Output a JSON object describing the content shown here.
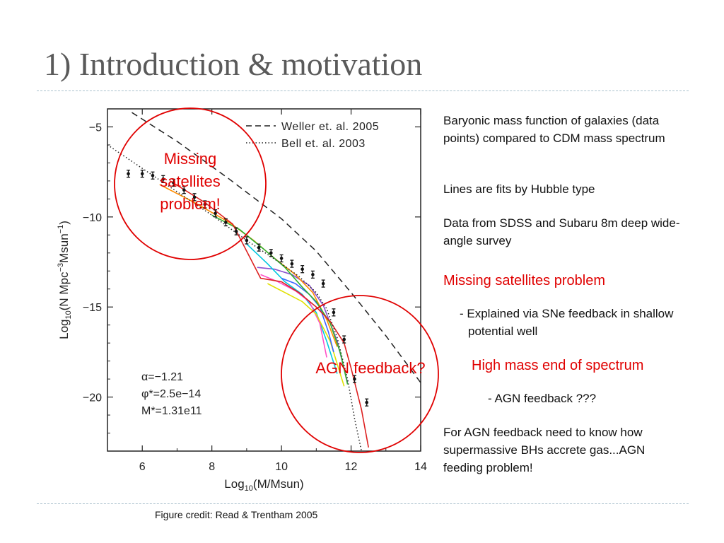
{
  "slide": {
    "title": "1) Introduction & motivation",
    "credit": "Figure credit:  Read & Trentham 2005"
  },
  "notes": {
    "p1": "Baryonic mass function of galaxies (data points) compared to CDM mass spectrum",
    "p2": "Lines are fits by Hubble type",
    "p3": "Data from SDSS and Subaru 8m deep wide-angle survey",
    "h1": "Missing satellites problem",
    "b1": "- Explained via SNe feedback in shallow potential well",
    "h2": "High mass end of spectrum",
    "b2": "- AGN feedback ???",
    "p4": "For AGN feedback need to know how supermassive BHs accrete gas...AGN feeding problem!"
  },
  "annotations": {
    "circle1": [
      "Missing",
      "satellites",
      "problem!"
    ],
    "circle2": "AGN feedback?",
    "color": "#e00000"
  },
  "chart_data": {
    "type": "scatter",
    "xlabel": "Log10(M/Msun)",
    "ylabel": "Log10(N Mpc^-3 Msun^-1)",
    "xlim": [
      5,
      14
    ],
    "ylim": [
      -23,
      -4
    ],
    "xticks": [
      6,
      8,
      10,
      12,
      14
    ],
    "yticks": [
      -5,
      -10,
      -15,
      -20
    ],
    "legend_position": "top-right",
    "fit_params": [
      "α=−1.21",
      "φ*=2.5e−14",
      "M*=1.31e11"
    ],
    "legend_entries": [
      {
        "name": "Weller et. al. 2005",
        "style": "dashed"
      },
      {
        "name": "Bell et. al. 2003",
        "style": "dotted"
      }
    ],
    "series": [
      {
        "name": "Weller et. al. 2005",
        "style": "dashed",
        "color": "#222222",
        "x": [
          5.7,
          7.0,
          8.5,
          10.0,
          11.0,
          12.0,
          13.0,
          13.5,
          14.0
        ],
        "y": [
          -4.2,
          -5.8,
          -7.9,
          -10.1,
          -11.9,
          -14.2,
          -16.6,
          -17.9,
          -19.2
        ]
      },
      {
        "name": "Bell et. al. 2003",
        "style": "dotted",
        "color": "#222222",
        "x": [
          5.0,
          6.0,
          7.0,
          8.0,
          9.0,
          10.0,
          10.5,
          11.0,
          11.3,
          11.6,
          11.9,
          12.1,
          12.3
        ],
        "y": [
          -6.0,
          -7.3,
          -8.6,
          -9.9,
          -11.3,
          -12.6,
          -13.3,
          -14.2,
          -15.1,
          -16.7,
          -19.0,
          -21.2,
          -23.0
        ]
      }
    ],
    "data_points": {
      "x": [
        5.6,
        6.0,
        6.3,
        6.6,
        6.9,
        7.2,
        7.5,
        7.8,
        8.1,
        8.4,
        8.7,
        9.0,
        9.35,
        9.7,
        10.0,
        10.3,
        10.6,
        10.9,
        11.2,
        11.5,
        11.8,
        12.1,
        12.45
      ],
      "y": [
        -7.6,
        -7.6,
        -7.7,
        -7.9,
        -8.1,
        -8.5,
        -8.9,
        -9.3,
        -9.8,
        -10.3,
        -10.8,
        -11.3,
        -11.7,
        -12.0,
        -12.3,
        -12.6,
        -12.9,
        -13.2,
        -13.7,
        -15.3,
        -16.8,
        -19.0,
        -20.3
      ]
    },
    "hubble_type_fits": [
      {
        "color": "#8a4fd0",
        "x": [
          9.3,
          9.8,
          10.3,
          10.8,
          11.2,
          11.6,
          11.9
        ],
        "y": [
          -12.8,
          -12.9,
          -13.2,
          -13.8,
          -14.9,
          -16.9,
          -19.2
        ]
      },
      {
        "color": "#00c8e0",
        "x": [
          9.0,
          9.6,
          10.1,
          10.6,
          11.0,
          11.3,
          11.6
        ],
        "y": [
          -11.5,
          -12.6,
          -13.6,
          -14.3,
          -15.3,
          -16.9,
          -18.7
        ]
      },
      {
        "color": "#ff8c00",
        "x": [
          6.5,
          7.5,
          8.5,
          9.2,
          9.8,
          10.4,
          10.9,
          11.3,
          11.6
        ],
        "y": [
          -8.2,
          -9.2,
          -10.3,
          -11.3,
          -12.3,
          -13.2,
          -14.2,
          -15.7,
          -17.2
        ]
      },
      {
        "color": "#ff50c8",
        "x": [
          9.4,
          9.9,
          10.4,
          10.8,
          11.1,
          11.3
        ],
        "y": [
          -13.2,
          -13.6,
          -14.1,
          -14.7,
          -15.9,
          -17.8
        ]
      },
      {
        "color": "#e0e000",
        "x": [
          9.6,
          10.1,
          10.6,
          11.0,
          11.4,
          11.8
        ],
        "y": [
          -13.7,
          -14.2,
          -14.7,
          -15.4,
          -16.9,
          -19.4
        ]
      },
      {
        "color": "#3c64ff",
        "x": [
          10.0,
          10.4,
          10.8,
          11.1,
          11.35,
          11.5
        ],
        "y": [
          -13.4,
          -13.7,
          -14.3,
          -15.0,
          -16.4,
          -17.5
        ]
      },
      {
        "color": "#30b030",
        "x": [
          8.0,
          8.8,
          9.5,
          10.1,
          10.6,
          11.0,
          11.4,
          11.7,
          11.9
        ],
        "y": [
          -9.9,
          -10.7,
          -11.8,
          -12.8,
          -13.9,
          -14.7,
          -15.9,
          -17.6,
          -19.3
        ]
      },
      {
        "color": "#dd2020",
        "x": [
          6.8,
          7.8,
          8.6,
          9.4,
          10.0,
          10.5,
          11.0,
          11.4,
          11.8,
          12.0,
          12.3,
          12.5
        ],
        "y": [
          -8.0,
          -9.2,
          -10.4,
          -13.4,
          -13.6,
          -14.2,
          -15.0,
          -15.8,
          -17.0,
          -18.4,
          -20.7,
          -22.8
        ]
      }
    ]
  }
}
